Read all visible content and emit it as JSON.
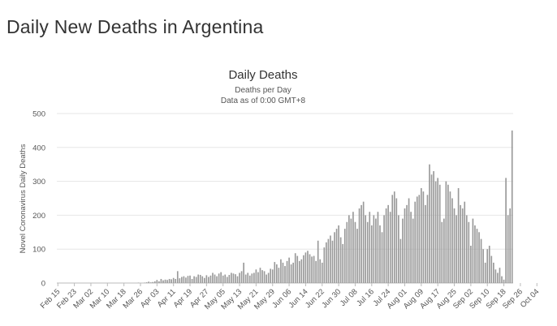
{
  "page": {
    "title": "Daily New Deaths in Argentina"
  },
  "chart_data": {
    "type": "bar",
    "title": "Daily Deaths",
    "subtitle": "Deaths per Day",
    "note": "Data as of 0:00 GMT+8",
    "xlabel": "",
    "ylabel": "Novel Coronavirus Daily Deaths",
    "ylim": [
      0,
      500
    ],
    "yticks": [
      0,
      100,
      200,
      300,
      400,
      500
    ],
    "grid": true,
    "legend": "none",
    "bar_color": "#999999",
    "x_start": "Feb 15",
    "x_end": "Oct 05",
    "x_tick_labels": [
      "Feb 15",
      "Feb 23",
      "Mar 02",
      "Mar 10",
      "Mar 18",
      "Mar 26",
      "Apr 03",
      "Apr 11",
      "Apr 19",
      "Apr 27",
      "May 05",
      "May 13",
      "May 21",
      "May 29",
      "Jun 06",
      "Jun 14",
      "Jun 22",
      "Jun 30",
      "Jul 08",
      "Jul 16",
      "Jul 24",
      "Aug 01",
      "Aug 09",
      "Aug 17",
      "Aug 25",
      "Sep 02",
      "Sep 10",
      "Sep 18",
      "Sep 26",
      "Oct 04"
    ],
    "values": [
      0,
      0,
      0,
      0,
      0,
      0,
      0,
      0,
      0,
      0,
      0,
      0,
      0,
      0,
      0,
      0,
      0,
      0,
      0,
      0,
      0,
      0,
      0,
      0,
      0,
      0,
      0,
      0,
      0,
      0,
      0,
      0,
      0,
      0,
      0,
      0,
      0,
      0,
      0,
      1,
      0,
      0,
      1,
      2,
      4,
      2,
      3,
      5,
      9,
      5,
      12,
      8,
      10,
      9,
      12,
      11,
      15,
      12,
      35,
      14,
      18,
      20,
      16,
      21,
      22,
      12,
      20,
      18,
      25,
      24,
      20,
      15,
      23,
      18,
      22,
      30,
      25,
      20,
      28,
      32,
      22,
      25,
      18,
      24,
      30,
      28,
      26,
      20,
      30,
      35,
      60,
      25,
      30,
      22,
      28,
      30,
      40,
      32,
      45,
      38,
      35,
      25,
      30,
      42,
      40,
      62,
      55,
      45,
      70,
      60,
      50,
      65,
      75,
      55,
      60,
      88,
      80,
      65,
      70,
      82,
      90,
      95,
      85,
      78,
      80,
      65,
      125,
      70,
      60,
      105,
      120,
      130,
      140,
      125,
      150,
      160,
      170,
      135,
      115,
      160,
      180,
      200,
      190,
      210,
      180,
      160,
      220,
      230,
      240,
      200,
      180,
      210,
      170,
      200,
      190,
      210,
      170,
      150,
      200,
      220,
      230,
      210,
      260,
      270,
      250,
      200,
      130,
      190,
      220,
      230,
      250,
      210,
      190,
      240,
      255,
      260,
      280,
      270,
      230,
      260,
      350,
      320,
      330,
      300,
      310,
      290,
      180,
      190,
      300,
      290,
      270,
      250,
      220,
      200,
      280,
      230,
      220,
      240,
      200,
      180,
      110,
      190,
      170,
      160,
      150,
      130,
      100,
      60,
      100,
      110,
      80,
      60,
      40,
      30,
      45,
      20,
      10,
      310,
      200,
      220,
      450
    ]
  }
}
